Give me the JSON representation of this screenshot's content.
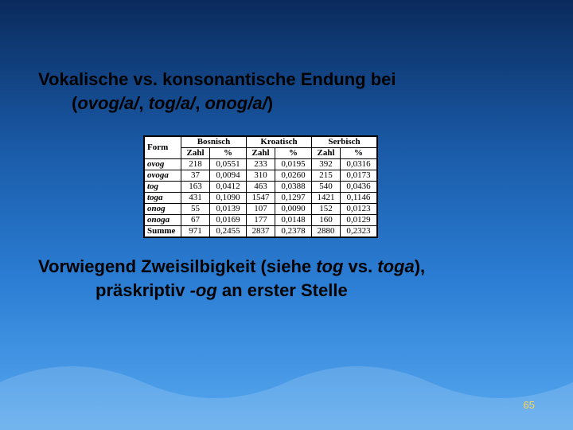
{
  "heading": {
    "line1_a": "Vokalische vs. konsonantische Endung bei",
    "line2_a": "(",
    "line2_it1": "ovog/a/",
    "line2_b": ", ",
    "line2_it2": "tog/a/",
    "line2_c": ", ",
    "line2_it3": "onog/a/",
    "line2_d": ")"
  },
  "table": {
    "header": {
      "form": "Form",
      "langs": [
        "Bosnisch",
        "Kroatisch",
        "Serbisch"
      ],
      "sub": [
        "Zahl",
        "%"
      ]
    },
    "rows": [
      {
        "form": "ovog",
        "b_z": "218",
        "b_p": "0,0551",
        "k_z": "233",
        "k_p": "0,0195",
        "s_z": "392",
        "s_p": "0,0316"
      },
      {
        "form": "ovoga",
        "b_z": "37",
        "b_p": "0,0094",
        "k_z": "310",
        "k_p": "0,0260",
        "s_z": "215",
        "s_p": "0,0173"
      },
      {
        "form": "tog",
        "b_z": "163",
        "b_p": "0,0412",
        "k_z": "463",
        "k_p": "0,0388",
        "s_z": "540",
        "s_p": "0,0436"
      },
      {
        "form": "toga",
        "b_z": "431",
        "b_p": "0,1090",
        "k_z": "1547",
        "k_p": "0,1297",
        "s_z": "1421",
        "s_p": "0,1146"
      },
      {
        "form": "onog",
        "b_z": "55",
        "b_p": "0,0139",
        "k_z": "107",
        "k_p": "0,0090",
        "s_z": "152",
        "s_p": "0,0123"
      },
      {
        "form": "onoga",
        "b_z": "67",
        "b_p": "0,0169",
        "k_z": "177",
        "k_p": "0,0148",
        "s_z": "160",
        "s_p": "0,0129"
      }
    ],
    "sum": {
      "form": "Summe",
      "b_z": "971",
      "b_p": "0,2455",
      "k_z": "2837",
      "k_p": "0,2378",
      "s_z": "2880",
      "s_p": "0,2323"
    }
  },
  "bottom": {
    "l1_a": "Vorwiegend Zweisilbigkeit (siehe ",
    "l1_it1": "tog",
    "l1_b": " vs. ",
    "l1_it2": "toga",
    "l1_c": "),",
    "l2_a": "präskriptiv ",
    "l2_it": "-og",
    "l2_b": " an erster Stelle"
  },
  "pagenum": "65",
  "colors": {
    "bg_top": "#0a2a5c",
    "bg_bottom": "#5aa8ec",
    "text": "#000000",
    "table_border": "#000000",
    "pagenum": "#ffcc33"
  }
}
